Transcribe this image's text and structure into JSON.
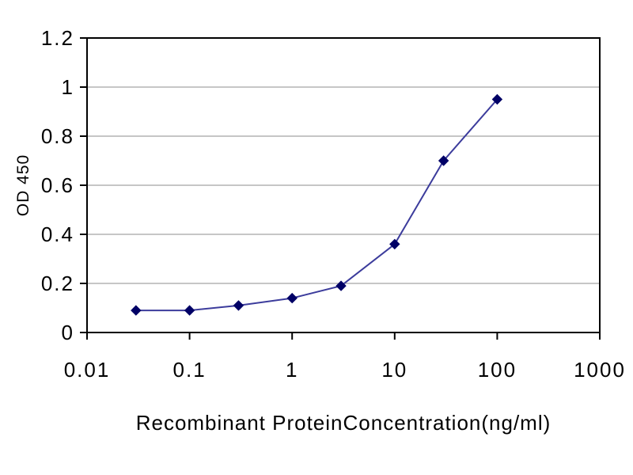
{
  "chart_data": {
    "type": "line",
    "title": "",
    "xlabel": "Recombinant ProteinConcentration(ng/ml)",
    "ylabel": "OD 450",
    "x_scale": "log10",
    "xlim": [
      0.01,
      1000
    ],
    "ylim": [
      0,
      1.2
    ],
    "x_ticks": [
      0.01,
      0.1,
      1,
      10,
      100,
      1000
    ],
    "x_tick_labels": [
      "0.01",
      "0.1",
      "1",
      "10",
      "100",
      "1000"
    ],
    "y_ticks": [
      0,
      0.2,
      0.4,
      0.6,
      0.8,
      1,
      1.2
    ],
    "y_tick_labels": [
      "0",
      "0.2",
      "0.4",
      "0.6",
      "0.8",
      "1",
      "1.2"
    ],
    "grid": "horizontal",
    "legend": "none",
    "series": [
      {
        "name": "OD450",
        "marker": "diamond",
        "line_color": "#3c3c9c",
        "marker_color": "#000066",
        "x": [
          0.03,
          0.1,
          0.3,
          1,
          3,
          10,
          30,
          100
        ],
        "y": [
          0.09,
          0.09,
          0.11,
          0.14,
          0.19,
          0.36,
          0.7,
          0.95
        ]
      }
    ]
  },
  "colors": {
    "background": "#ffffff",
    "plot_border": "#000000",
    "gridline": "#8c8c8c",
    "text": "#000000"
  }
}
